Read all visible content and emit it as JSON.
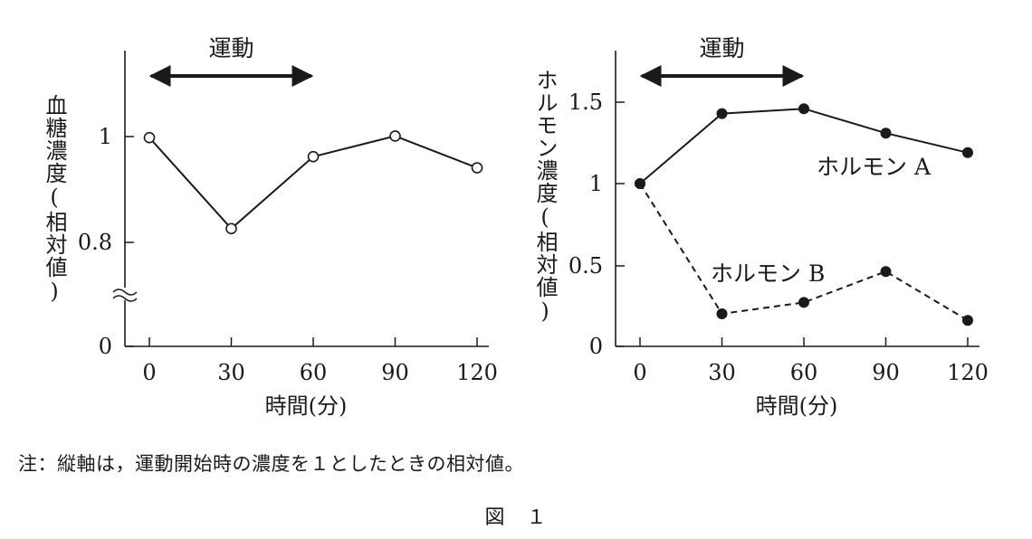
{
  "chart_data": [
    {
      "type": "line",
      "title": "",
      "xlabel": "時間(分)",
      "ylabel": "血糖濃度(相対値)",
      "x": [
        0,
        30,
        60,
        90,
        120
      ],
      "x_ticks": [
        "0",
        "30",
        "60",
        "90",
        "120"
      ],
      "xlim": [
        -10,
        125
      ],
      "y_ticks": [
        "0",
        "0.8",
        "1"
      ],
      "y_axis_break": true,
      "grid": false,
      "bracket_label": "運動",
      "bracket_range": [
        0,
        60
      ],
      "series": [
        {
          "name": "",
          "values": [
            0.998,
            0.826,
            0.962,
            1.001,
            0.941
          ],
          "marker": "open-circle",
          "line": "solid"
        }
      ]
    },
    {
      "type": "line",
      "title": "",
      "xlabel": "時間(分)",
      "ylabel": "ホルモン濃度(相対値)",
      "x": [
        0,
        30,
        60,
        90,
        120
      ],
      "x_ticks": [
        "0",
        "30",
        "60",
        "90",
        "120"
      ],
      "xlim": [
        -10,
        125
      ],
      "y_ticks": [
        "0",
        "0.5",
        "1",
        "1.5"
      ],
      "ylim": [
        0,
        1.85
      ],
      "grid": false,
      "bracket_label": "運動",
      "bracket_range": [
        0,
        60
      ],
      "series": [
        {
          "name": "ホルモン A",
          "values": [
            1.0,
            1.43,
            1.46,
            1.31,
            1.19
          ],
          "marker": "filled-circle",
          "line": "solid"
        },
        {
          "name": "ホルモン B",
          "values": [
            1.0,
            0.2,
            0.27,
            0.46,
            0.16
          ],
          "marker": "filled-circle",
          "line": "dashed"
        }
      ]
    }
  ],
  "note": "注：縦軸は，運動開始時の濃度を１としたときの相対値。",
  "caption": "図　１"
}
